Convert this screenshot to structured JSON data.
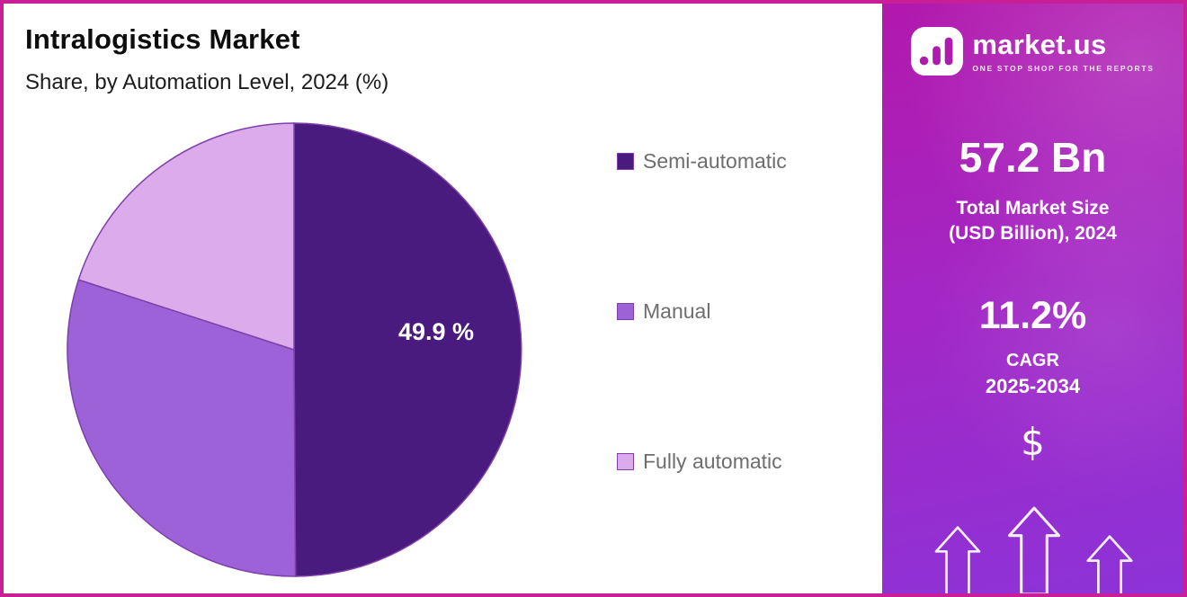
{
  "header": {
    "title": "Intralogistics Market",
    "subtitle": "Share, by Automation Level, 2024 (%)"
  },
  "chart_data": {
    "type": "pie",
    "title": "Intralogistics Market",
    "subtitle": "Share, by Automation Level, 2024 (%)",
    "labels": [
      "Semi-automatic",
      "Manual",
      "Fully automatic"
    ],
    "values": [
      49.9,
      30.1,
      20.0
    ],
    "colors": [
      "#4A1B7F",
      "#9D62D8",
      "#DCABEC"
    ],
    "start_angle_deg": 0,
    "direction": "clockwise",
    "slice_label": {
      "text": "49.9 %",
      "slice": "Semi-automatic"
    },
    "legend_position": "right",
    "stroke_color": "#7E3FA8"
  },
  "sidebar": {
    "brand": {
      "name": "market.us",
      "tagline": "ONE STOP SHOP FOR THE REPORTS",
      "logo_icon": "marketus-bars-logo"
    },
    "market_size_value": "57.2 Bn",
    "market_size_label_line1": "Total Market Size",
    "market_size_label_line2": "(USD Billion), 2024",
    "cagr_value": "11.2%",
    "cagr_label": "CAGR",
    "cagr_period": "2025-2034",
    "dollar_symbol": "$"
  },
  "colors": {
    "frame_border": "#C91F96",
    "panel_top": "#B218AC",
    "panel_mid": "#A426C4",
    "panel_bottom": "#8C33D8",
    "title_text": "#0D0D0D",
    "subtitle_text": "#1C1C1C",
    "legend_text": "#6E6E6E",
    "pie_stroke": "#7E3FA8",
    "slice_label_text": "#FFFFFF"
  }
}
